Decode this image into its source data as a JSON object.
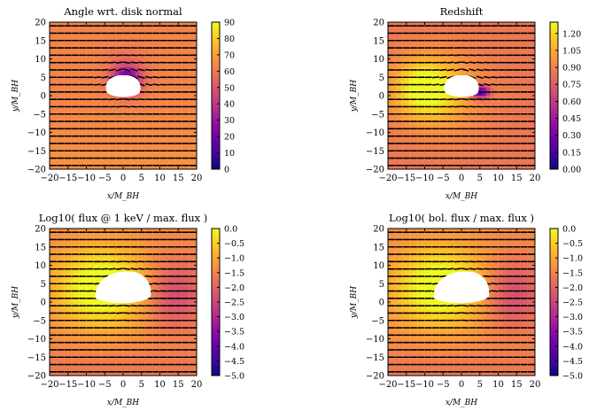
{
  "chart_data": [
    {
      "type": "heatmap",
      "title": "Angle wrt. disk normal",
      "xlabel": "x/M_BH",
      "ylabel": "y/M_BH",
      "xlim": [
        -20,
        20
      ],
      "ylim": [
        -20,
        20
      ],
      "x_ticks": [
        "−20",
        "−15",
        "−10",
        "−5",
        "0",
        "5",
        "10",
        "15",
        "20"
      ],
      "y_ticks": [
        "20",
        "15",
        "10",
        "5",
        "0",
        "−5",
        "−10",
        "−15",
        "−20"
      ],
      "colorbar": {
        "min": 0,
        "max": 90,
        "ticks": [
          "90",
          "80",
          "70",
          "60",
          "50",
          "40",
          "30",
          "20",
          "10",
          "0"
        ]
      },
      "colormap": "plasma",
      "field": "angle",
      "overlay": "polarization ticks"
    },
    {
      "type": "heatmap",
      "title": "Redshift",
      "xlabel": "x/M_BH",
      "ylabel": "y/M_BH",
      "xlim": [
        -20,
        20
      ],
      "ylim": [
        -20,
        20
      ],
      "x_ticks": [
        "−20",
        "−15",
        "−10",
        "−5",
        "0",
        "5",
        "10",
        "15",
        "20"
      ],
      "y_ticks": [
        "20",
        "15",
        "10",
        "5",
        "0",
        "−5",
        "−10",
        "−15",
        "−20"
      ],
      "colorbar": {
        "min": 0,
        "max": 1.3,
        "ticks": [
          "1.20",
          "1.05",
          "0.90",
          "0.75",
          "0.60",
          "0.45",
          "0.30",
          "0.15",
          "0.00"
        ]
      },
      "colormap": "plasma",
      "field": "redshift",
      "overlay": "polarization ticks"
    },
    {
      "type": "heatmap",
      "title": "Log10( flux @ 1 keV / max. flux )",
      "xlabel": "x/M_BH",
      "ylabel": "y/M_BH",
      "xlim": [
        -20,
        20
      ],
      "ylim": [
        -20,
        20
      ],
      "x_ticks": [
        "−20",
        "−15",
        "−10",
        "−5",
        "0",
        "5",
        "10",
        "15",
        "20"
      ],
      "y_ticks": [
        "20",
        "15",
        "10",
        "5",
        "0",
        "−5",
        "−10",
        "−15",
        "−20"
      ],
      "colorbar": {
        "min": -5,
        "max": 0,
        "ticks": [
          "0.0",
          "−0.5",
          "−1.0",
          "−1.5",
          "−2.0",
          "−2.5",
          "−3.0",
          "−3.5",
          "−4.0",
          "−4.5",
          "−5.0"
        ]
      },
      "colormap": "plasma",
      "field": "flux",
      "overlay": "polarization ticks"
    },
    {
      "type": "heatmap",
      "title": "Log10( bol. flux / max. flux )",
      "xlabel": "x/M_BH",
      "ylabel": "y/M_BH",
      "xlim": [
        -20,
        20
      ],
      "ylim": [
        -20,
        20
      ],
      "x_ticks": [
        "−20",
        "−15",
        "−10",
        "−5",
        "0",
        "5",
        "10",
        "15",
        "20"
      ],
      "y_ticks": [
        "20",
        "15",
        "10",
        "5",
        "0",
        "−5",
        "−10",
        "−15",
        "−20"
      ],
      "colorbar": {
        "min": -5,
        "max": 0,
        "ticks": [
          "0.0",
          "−0.5",
          "−1.0",
          "−1.5",
          "−2.0",
          "−2.5",
          "−3.0",
          "−3.5",
          "−4.0",
          "−4.5",
          "−5.0"
        ]
      },
      "colormap": "plasma",
      "field": "flux",
      "overlay": "polarization ticks"
    }
  ]
}
